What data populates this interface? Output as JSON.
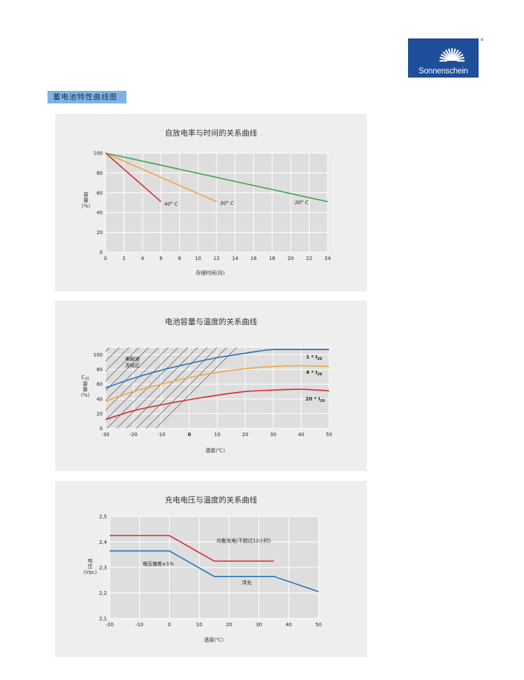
{
  "brand": {
    "name": "Sonnenschein",
    "registered_mark": "®"
  },
  "section_label": "蓄电池特性曲线图",
  "colors": {
    "red": "#d7262d",
    "orange": "#eea43a",
    "green": "#3aa34a",
    "blue": "#2171b5",
    "logo_blue": "#1f4e9a",
    "label_bg": "#7fb3e6"
  },
  "chart_data": [
    {
      "type": "line",
      "title": "自放电率与时间的关系曲线",
      "xlabel": "存储时间(月)",
      "ylabel": "容\n量\n(%)",
      "xlim": [
        0,
        24
      ],
      "ylim": [
        0,
        100
      ],
      "xticks": [
        0,
        2,
        4,
        6,
        8,
        10,
        12,
        14,
        16,
        18,
        20,
        22,
        24
      ],
      "yticks": [
        0,
        20,
        40,
        60,
        80,
        100
      ],
      "grid": true,
      "series": [
        {
          "name": "40° C",
          "color": "#d7262d",
          "x": [
            0,
            6
          ],
          "y": [
            100,
            51
          ]
        },
        {
          "name": "30° C",
          "color": "#eea43a",
          "x": [
            0,
            12
          ],
          "y": [
            100,
            51
          ]
        },
        {
          "name": "20° C",
          "color": "#3aa34a",
          "x": [
            0,
            24
          ],
          "y": [
            100,
            51
          ]
        }
      ]
    },
    {
      "type": "line",
      "title": "电池容量与温度的关系曲线",
      "xlabel": "温度(℃)",
      "ylabel": "C20\n容\n量\n(%)",
      "xlim": [
        -30,
        50
      ],
      "ylim": [
        0,
        110
      ],
      "xticks": [
        "-30",
        "-20",
        "-10",
        "0",
        "10",
        "20",
        "30",
        "40",
        "50"
      ],
      "xtick_values": [
        -30,
        -20,
        -10,
        0,
        10,
        20,
        30,
        40,
        50
      ],
      "yticks": [
        0,
        20,
        40,
        60,
        80,
        100
      ],
      "grid": true,
      "hatched_region": {
        "label": "电解液\n冻结区",
        "x_range": [
          -30,
          -10
        ]
      },
      "series": [
        {
          "name": "1 * I20",
          "color": "#2171b5",
          "x": [
            -30,
            -20,
            -10,
            0,
            10,
            20,
            25,
            30,
            40,
            50
          ],
          "y": [
            55,
            68,
            79,
            88,
            96,
            102,
            105,
            107,
            107,
            107
          ]
        },
        {
          "name": "4 * I20",
          "color": "#eea43a",
          "x": [
            -30,
            -20,
            -10,
            0,
            10,
            20,
            30,
            40,
            50
          ],
          "y": [
            37,
            50,
            60,
            69,
            76,
            81,
            84,
            85,
            84
          ]
        },
        {
          "name": "20 * I20",
          "color": "#d7262d",
          "x": [
            -30,
            -20,
            -10,
            0,
            10,
            20,
            30,
            40,
            50
          ],
          "y": [
            12,
            24,
            32,
            39,
            45,
            50,
            52,
            53,
            51
          ]
        }
      ]
    },
    {
      "type": "line",
      "title": "充电电压与温度的关系曲线",
      "xlabel": "温度(℃)",
      "ylabel": "电\n压\n(Vpc)",
      "xlim": [
        -20,
        50
      ],
      "ylim": [
        2.1,
        2.5
      ],
      "xticks": [
        -20,
        -10,
        0,
        10,
        20,
        30,
        40,
        50
      ],
      "yticks": [
        "2,1",
        "2,2",
        "2,3",
        "2,4",
        "2,5"
      ],
      "ytick_values": [
        2.1,
        2.2,
        2.3,
        2.4,
        2.5
      ],
      "grid": true,
      "series": [
        {
          "name": "均衡充电(不超过12小时)",
          "color": "#d7262d",
          "x": [
            -20,
            0,
            15,
            35
          ],
          "y": [
            2.425,
            2.425,
            2.325,
            2.325
          ]
        },
        {
          "name": "浮充",
          "color": "#2171b5",
          "x": [
            -20,
            0,
            15,
            35,
            50
          ],
          "y": [
            2.365,
            2.365,
            2.265,
            2.265,
            2.205
          ]
        }
      ],
      "annotations": [
        "电压偏差±1%"
      ]
    }
  ]
}
